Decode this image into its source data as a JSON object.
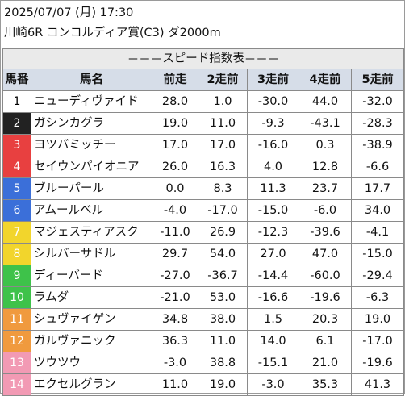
{
  "header": {
    "datetime": "2025/07/07 (月) 17:30",
    "race": "川崎6R コンコルディア賞(C3) ダ2000m"
  },
  "table": {
    "title": "＝＝＝スピード指数表＝＝＝",
    "columns": [
      "馬番",
      "馬名",
      "前走",
      "2走前",
      "3走前",
      "4走前",
      "5走前"
    ],
    "rows": [
      {
        "num": "1",
        "name": "ニューディヴァイド",
        "bg": "#ffffff",
        "fg": "#000000",
        "v": [
          "28.0",
          "1.0",
          "-30.0",
          "44.0",
          "-32.0"
        ]
      },
      {
        "num": "2",
        "name": "ガシンカグラ",
        "bg": "#222222",
        "fg": "#ffffff",
        "v": [
          "19.0",
          "11.0",
          "-9.3",
          "-43.1",
          "-28.3"
        ]
      },
      {
        "num": "3",
        "name": "ヨツバミッチー",
        "bg": "#e84040",
        "fg": "#ffffff",
        "v": [
          "17.0",
          "17.0",
          "-16.0",
          "0.3",
          "-38.9"
        ]
      },
      {
        "num": "4",
        "name": "セイウンパイオニア",
        "bg": "#e84040",
        "fg": "#ffffff",
        "v": [
          "26.0",
          "16.3",
          "4.0",
          "12.8",
          "-6.6"
        ]
      },
      {
        "num": "5",
        "name": "ブルーパール",
        "bg": "#3b6fd9",
        "fg": "#ffffff",
        "v": [
          "0.0",
          "8.3",
          "11.3",
          "23.7",
          "17.7"
        ]
      },
      {
        "num": "6",
        "name": "アムールベル",
        "bg": "#3b6fd9",
        "fg": "#ffffff",
        "v": [
          "-4.0",
          "-17.0",
          "-15.0",
          "-6.0",
          "34.0"
        ]
      },
      {
        "num": "7",
        "name": "マジェスティアスク",
        "bg": "#f2d52c",
        "fg": "#ffffff",
        "v": [
          "-11.0",
          "26.9",
          "-12.3",
          "-39.6",
          "-4.1"
        ]
      },
      {
        "num": "8",
        "name": "シルバーサドル",
        "bg": "#f2d52c",
        "fg": "#ffffff",
        "v": [
          "29.7",
          "54.0",
          "27.0",
          "47.0",
          "-15.0"
        ]
      },
      {
        "num": "9",
        "name": "ディーバード",
        "bg": "#3ec24a",
        "fg": "#ffffff",
        "v": [
          "-27.0",
          "-36.7",
          "-14.4",
          "-60.0",
          "-29.4"
        ]
      },
      {
        "num": "10",
        "name": "ラムダ",
        "bg": "#3ec24a",
        "fg": "#ffffff",
        "v": [
          "-21.0",
          "53.0",
          "-16.6",
          "-19.6",
          "-6.3"
        ]
      },
      {
        "num": "11",
        "name": "シュヴァイゲン",
        "bg": "#f09a3e",
        "fg": "#ffffff",
        "v": [
          "34.8",
          "38.0",
          "1.5",
          "20.3",
          "19.0"
        ]
      },
      {
        "num": "12",
        "name": "ガルヴァニック",
        "bg": "#f09a3e",
        "fg": "#ffffff",
        "v": [
          "36.3",
          "11.0",
          "14.0",
          "6.1",
          "-17.0"
        ]
      },
      {
        "num": "13",
        "name": "ツウツウ",
        "bg": "#f29ab4",
        "fg": "#ffffff",
        "v": [
          "-3.0",
          "38.8",
          "-15.1",
          "21.0",
          "-19.6"
        ]
      },
      {
        "num": "14",
        "name": "エクセルグラン",
        "bg": "#f29ab4",
        "fg": "#ffffff",
        "v": [
          "11.0",
          "19.0",
          "-3.0",
          "35.3",
          "41.3"
        ]
      }
    ]
  }
}
